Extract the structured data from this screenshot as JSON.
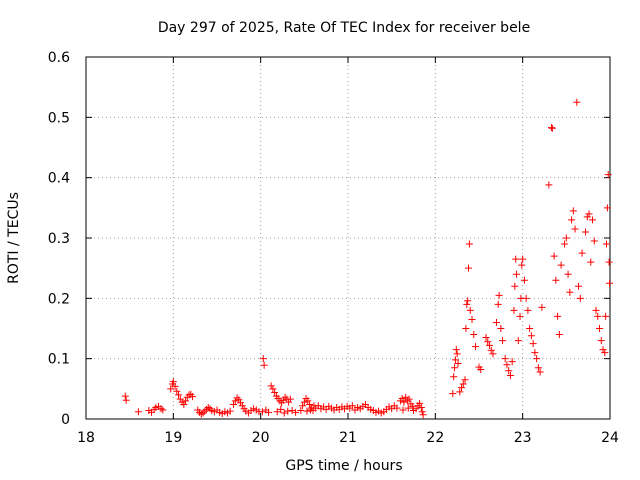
{
  "chart_data": {
    "type": "scatter",
    "title": "Day 297 of 2025, Rate Of TEC Index for receiver bele",
    "xlabel": "GPS time / hours",
    "ylabel": "ROTI / TECUs",
    "xlim": [
      18,
      24
    ],
    "ylim": [
      0,
      0.6
    ],
    "xticks": [
      "18",
      "19",
      "20",
      "21",
      "22",
      "23",
      "24"
    ],
    "yticks": [
      "0",
      "0.1",
      "0.2",
      "0.3",
      "0.4",
      "0.5",
      "0.6"
    ],
    "grid": true,
    "marker": "+",
    "color": "#ff0000",
    "series": [
      {
        "name": "ROTI",
        "points": [
          [
            18.45,
            0.038
          ],
          [
            18.46,
            0.031
          ],
          [
            18.6,
            0.012
          ],
          [
            18.72,
            0.014
          ],
          [
            18.75,
            0.011
          ],
          [
            18.78,
            0.016
          ],
          [
            18.8,
            0.019
          ],
          [
            18.83,
            0.021
          ],
          [
            18.86,
            0.017
          ],
          [
            18.88,
            0.015
          ],
          [
            18.97,
            0.05
          ],
          [
            18.99,
            0.058
          ],
          [
            19.0,
            0.062
          ],
          [
            19.02,
            0.054
          ],
          [
            19.04,
            0.046
          ],
          [
            19.06,
            0.04
          ],
          [
            19.08,
            0.033
          ],
          [
            19.1,
            0.028
          ],
          [
            19.12,
            0.024
          ],
          [
            19.14,
            0.03
          ],
          [
            19.16,
            0.036
          ],
          [
            19.18,
            0.04
          ],
          [
            19.2,
            0.041
          ],
          [
            19.22,
            0.037
          ],
          [
            19.28,
            0.015
          ],
          [
            19.3,
            0.011
          ],
          [
            19.32,
            0.008
          ],
          [
            19.34,
            0.01
          ],
          [
            19.36,
            0.013
          ],
          [
            19.38,
            0.016
          ],
          [
            19.4,
            0.019
          ],
          [
            19.42,
            0.017
          ],
          [
            19.44,
            0.014
          ],
          [
            19.47,
            0.012
          ],
          [
            19.5,
            0.015
          ],
          [
            19.53,
            0.011
          ],
          [
            19.56,
            0.009
          ],
          [
            19.59,
            0.012
          ],
          [
            19.62,
            0.01
          ],
          [
            19.65,
            0.013
          ],
          [
            19.69,
            0.024
          ],
          [
            19.71,
            0.03
          ],
          [
            19.73,
            0.035
          ],
          [
            19.75,
            0.032
          ],
          [
            19.77,
            0.027
          ],
          [
            19.79,
            0.022
          ],
          [
            19.81,
            0.017
          ],
          [
            19.83,
            0.013
          ],
          [
            19.86,
            0.01
          ],
          [
            19.89,
            0.014
          ],
          [
            19.92,
            0.017
          ],
          [
            19.95,
            0.015
          ],
          [
            19.98,
            0.012
          ],
          [
            20.03,
            0.1
          ],
          [
            20.04,
            0.089
          ],
          [
            20.02,
            0.012
          ],
          [
            20.06,
            0.015
          ],
          [
            20.09,
            0.011
          ],
          [
            20.12,
            0.055
          ],
          [
            20.14,
            0.05
          ],
          [
            20.16,
            0.044
          ],
          [
            20.18,
            0.038
          ],
          [
            20.2,
            0.034
          ],
          [
            20.22,
            0.03
          ],
          [
            20.24,
            0.027
          ],
          [
            20.26,
            0.031
          ],
          [
            20.28,
            0.036
          ],
          [
            20.3,
            0.033
          ],
          [
            20.32,
            0.028
          ],
          [
            20.34,
            0.033
          ],
          [
            20.19,
            0.012
          ],
          [
            20.23,
            0.016
          ],
          [
            20.27,
            0.01
          ],
          [
            20.31,
            0.013
          ],
          [
            20.36,
            0.014
          ],
          [
            20.4,
            0.011
          ],
          [
            20.46,
            0.014
          ],
          [
            20.48,
            0.022
          ],
          [
            20.5,
            0.028
          ],
          [
            20.52,
            0.034
          ],
          [
            20.54,
            0.03
          ],
          [
            20.56,
            0.024
          ],
          [
            20.58,
            0.018
          ],
          [
            20.6,
            0.014
          ],
          [
            20.53,
            0.013
          ],
          [
            20.57,
            0.015
          ],
          [
            20.61,
            0.022
          ],
          [
            20.63,
            0.018
          ],
          [
            20.66,
            0.022
          ],
          [
            20.69,
            0.017
          ],
          [
            20.72,
            0.02
          ],
          [
            20.75,
            0.016
          ],
          [
            20.78,
            0.021
          ],
          [
            20.81,
            0.018
          ],
          [
            20.84,
            0.015
          ],
          [
            20.87,
            0.019
          ],
          [
            20.9,
            0.016
          ],
          [
            20.93,
            0.02
          ],
          [
            20.96,
            0.017
          ],
          [
            20.99,
            0.021
          ],
          [
            21.02,
            0.018
          ],
          [
            21.05,
            0.022
          ],
          [
            21.08,
            0.015
          ],
          [
            21.11,
            0.019
          ],
          [
            21.14,
            0.017
          ],
          [
            21.17,
            0.021
          ],
          [
            21.2,
            0.024
          ],
          [
            21.23,
            0.019
          ],
          [
            21.26,
            0.016
          ],
          [
            21.29,
            0.014
          ],
          [
            21.32,
            0.011
          ],
          [
            21.35,
            0.013
          ],
          [
            21.38,
            0.01
          ],
          [
            21.41,
            0.012
          ],
          [
            21.44,
            0.016
          ],
          [
            21.47,
            0.02
          ],
          [
            21.5,
            0.017
          ],
          [
            21.53,
            0.022
          ],
          [
            21.56,
            0.018
          ],
          [
            21.6,
            0.03
          ],
          [
            21.62,
            0.034
          ],
          [
            21.64,
            0.028
          ],
          [
            21.66,
            0.036
          ],
          [
            21.68,
            0.03
          ],
          [
            21.7,
            0.033
          ],
          [
            21.72,
            0.025
          ],
          [
            21.74,
            0.021
          ],
          [
            21.63,
            0.015
          ],
          [
            21.69,
            0.018
          ],
          [
            21.75,
            0.014
          ],
          [
            21.78,
            0.017
          ],
          [
            21.8,
            0.022
          ],
          [
            21.82,
            0.026
          ],
          [
            21.84,
            0.019
          ],
          [
            21.85,
            0.012
          ],
          [
            21.86,
            0.007
          ],
          [
            22.2,
            0.042
          ],
          [
            22.21,
            0.07
          ],
          [
            22.22,
            0.085
          ],
          [
            22.23,
            0.098
          ],
          [
            22.24,
            0.115
          ],
          [
            22.25,
            0.108
          ],
          [
            22.26,
            0.092
          ],
          [
            22.28,
            0.045
          ],
          [
            22.3,
            0.052
          ],
          [
            22.32,
            0.058
          ],
          [
            22.34,
            0.065
          ],
          [
            22.35,
            0.15
          ],
          [
            22.36,
            0.19
          ],
          [
            22.37,
            0.196
          ],
          [
            22.38,
            0.25
          ],
          [
            22.39,
            0.29
          ],
          [
            22.4,
            0.18
          ],
          [
            22.42,
            0.165
          ],
          [
            22.44,
            0.14
          ],
          [
            22.46,
            0.12
          ],
          [
            22.5,
            0.086
          ],
          [
            22.52,
            0.082
          ],
          [
            22.58,
            0.135
          ],
          [
            22.6,
            0.128
          ],
          [
            22.62,
            0.122
          ],
          [
            22.64,
            0.114
          ],
          [
            22.66,
            0.108
          ],
          [
            22.7,
            0.16
          ],
          [
            22.72,
            0.19
          ],
          [
            22.73,
            0.205
          ],
          [
            22.75,
            0.15
          ],
          [
            22.77,
            0.13
          ],
          [
            22.8,
            0.1
          ],
          [
            22.82,
            0.09
          ],
          [
            22.84,
            0.08
          ],
          [
            22.86,
            0.072
          ],
          [
            22.88,
            0.095
          ],
          [
            22.9,
            0.18
          ],
          [
            22.91,
            0.22
          ],
          [
            22.92,
            0.265
          ],
          [
            22.93,
            0.24
          ],
          [
            22.95,
            0.13
          ],
          [
            22.97,
            0.17
          ],
          [
            22.98,
            0.2
          ],
          [
            22.99,
            0.255
          ],
          [
            23.0,
            0.265
          ],
          [
            23.02,
            0.23
          ],
          [
            23.04,
            0.2
          ],
          [
            23.06,
            0.18
          ],
          [
            23.08,
            0.15
          ],
          [
            23.1,
            0.138
          ],
          [
            23.12,
            0.125
          ],
          [
            23.14,
            0.11
          ],
          [
            23.16,
            0.1
          ],
          [
            23.18,
            0.085
          ],
          [
            23.2,
            0.078
          ],
          [
            23.22,
            0.185
          ],
          [
            23.3,
            0.388
          ],
          [
            23.33,
            0.483
          ],
          [
            23.34,
            0.482
          ],
          [
            23.36,
            0.27
          ],
          [
            23.38,
            0.23
          ],
          [
            23.4,
            0.17
          ],
          [
            23.42,
            0.14
          ],
          [
            23.44,
            0.255
          ],
          [
            23.48,
            0.29
          ],
          [
            23.5,
            0.3
          ],
          [
            23.52,
            0.24
          ],
          [
            23.54,
            0.21
          ],
          [
            23.56,
            0.33
          ],
          [
            23.58,
            0.345
          ],
          [
            23.6,
            0.315
          ],
          [
            23.62,
            0.525
          ],
          [
            23.64,
            0.22
          ],
          [
            23.66,
            0.2
          ],
          [
            23.68,
            0.275
          ],
          [
            23.72,
            0.31
          ],
          [
            23.74,
            0.335
          ],
          [
            23.76,
            0.34
          ],
          [
            23.78,
            0.26
          ],
          [
            23.8,
            0.33
          ],
          [
            23.82,
            0.295
          ],
          [
            23.84,
            0.18
          ],
          [
            23.86,
            0.17
          ],
          [
            23.88,
            0.15
          ],
          [
            23.9,
            0.13
          ],
          [
            23.92,
            0.115
          ],
          [
            23.94,
            0.11
          ],
          [
            23.95,
            0.17
          ],
          [
            23.96,
            0.29
          ],
          [
            23.97,
            0.35
          ],
          [
            23.98,
            0.405
          ],
          [
            23.99,
            0.26
          ],
          [
            23.995,
            0.225
          ]
        ]
      }
    ]
  }
}
